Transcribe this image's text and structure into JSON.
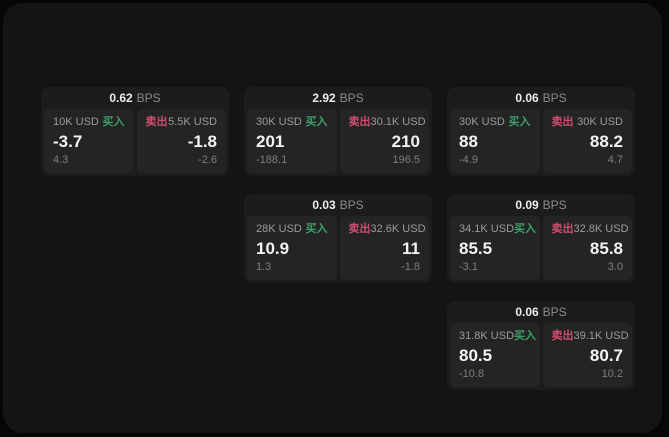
{
  "labels": {
    "bps_unit": "BPS",
    "buy": "买入",
    "sell": "卖出"
  },
  "colors": {
    "buy": "#3da06a",
    "sell": "#ce4e6e",
    "outer_bg": "#060606",
    "window_bg": "#141414",
    "card_bg": "#1c1c1c",
    "panel_bg": "#242424"
  },
  "cards": [
    {
      "bps": "0.62",
      "buy": {
        "amount": "10K USD",
        "price": "-3.7",
        "delta": "4.3"
      },
      "sell": {
        "amount": "5.5K USD",
        "price": "-1.8",
        "delta": "-2.6"
      }
    },
    {
      "bps": "2.92",
      "buy": {
        "amount": "30K USD",
        "price": "201",
        "delta": "-188.1"
      },
      "sell": {
        "amount": "30.1K USD",
        "price": "210",
        "delta": "196.5"
      }
    },
    {
      "bps": "0.06",
      "buy": {
        "amount": "30K USD",
        "price": "88",
        "delta": "-4.9"
      },
      "sell": {
        "amount": "30K USD",
        "price": "88.2",
        "delta": "4.7"
      }
    },
    {
      "bps": "0.03",
      "buy": {
        "amount": "28K USD",
        "price": "10.9",
        "delta": "1.3"
      },
      "sell": {
        "amount": "32.6K USD",
        "price": "11",
        "delta": "-1.8"
      }
    },
    {
      "bps": "0.09",
      "buy": {
        "amount": "34.1K USD",
        "price": "85.5",
        "delta": "-3.1"
      },
      "sell": {
        "amount": "32.8K USD",
        "price": "85.8",
        "delta": "3.0"
      }
    },
    {
      "bps": "0.06",
      "buy": {
        "amount": "31.8K USD",
        "price": "80.5",
        "delta": "-10.8"
      },
      "sell": {
        "amount": "39.1K USD",
        "price": "80.7",
        "delta": "10.2"
      }
    }
  ]
}
